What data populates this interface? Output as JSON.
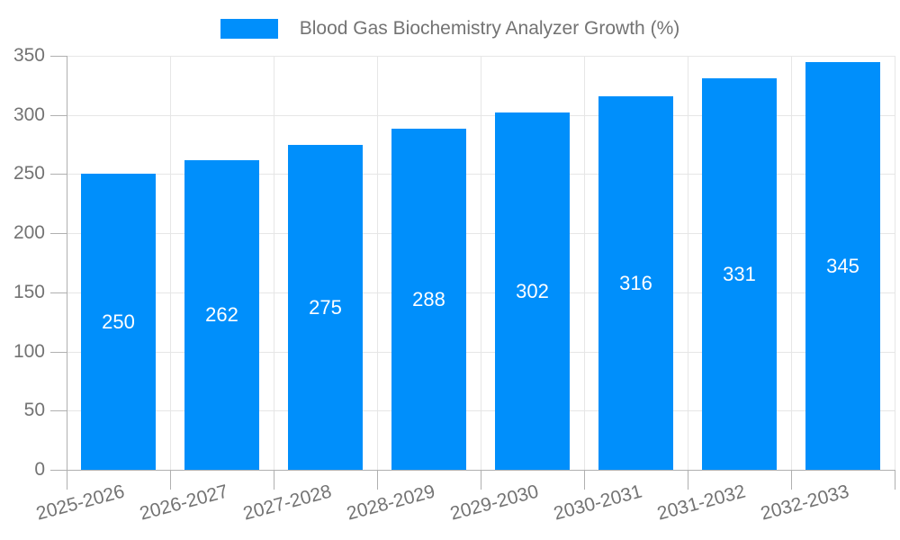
{
  "legend": {
    "position": "top",
    "items": [
      {
        "label": "Blood Gas Biochemistry Analyzer Growth (%)",
        "swatch_color": "#008FFB"
      }
    ]
  },
  "chart_data": {
    "type": "bar",
    "title": "Blood Gas Biochemistry Analyzer Growth (%)",
    "series_name": "Blood Gas Biochemistry Analyzer Growth (%)",
    "categories": [
      "2025-2026",
      "2026-2027",
      "2027-2028",
      "2028-2029",
      "2029-2030",
      "2030-2031",
      "2031-2032",
      "2032-2033"
    ],
    "values": [
      250,
      262,
      275,
      288,
      302,
      316,
      331,
      345
    ],
    "data_labels": [
      "250",
      "262",
      "275",
      "288",
      "302",
      "316",
      "331",
      "345"
    ],
    "xlabel": "",
    "ylabel": "",
    "ylim": [
      0,
      350
    ],
    "yticks": [
      0,
      50,
      100,
      150,
      200,
      250,
      300,
      350
    ],
    "x_label_rotation_deg": -15,
    "grid": "horizontal-and-vertical",
    "legend_position": "top-center",
    "colors": {
      "bar": "#008FFB",
      "grid": "#e6e6e6",
      "axis": "#b0b0b0",
      "tick_text": "#737373",
      "data_label_text": "#ffffff",
      "background": "#ffffff"
    }
  }
}
